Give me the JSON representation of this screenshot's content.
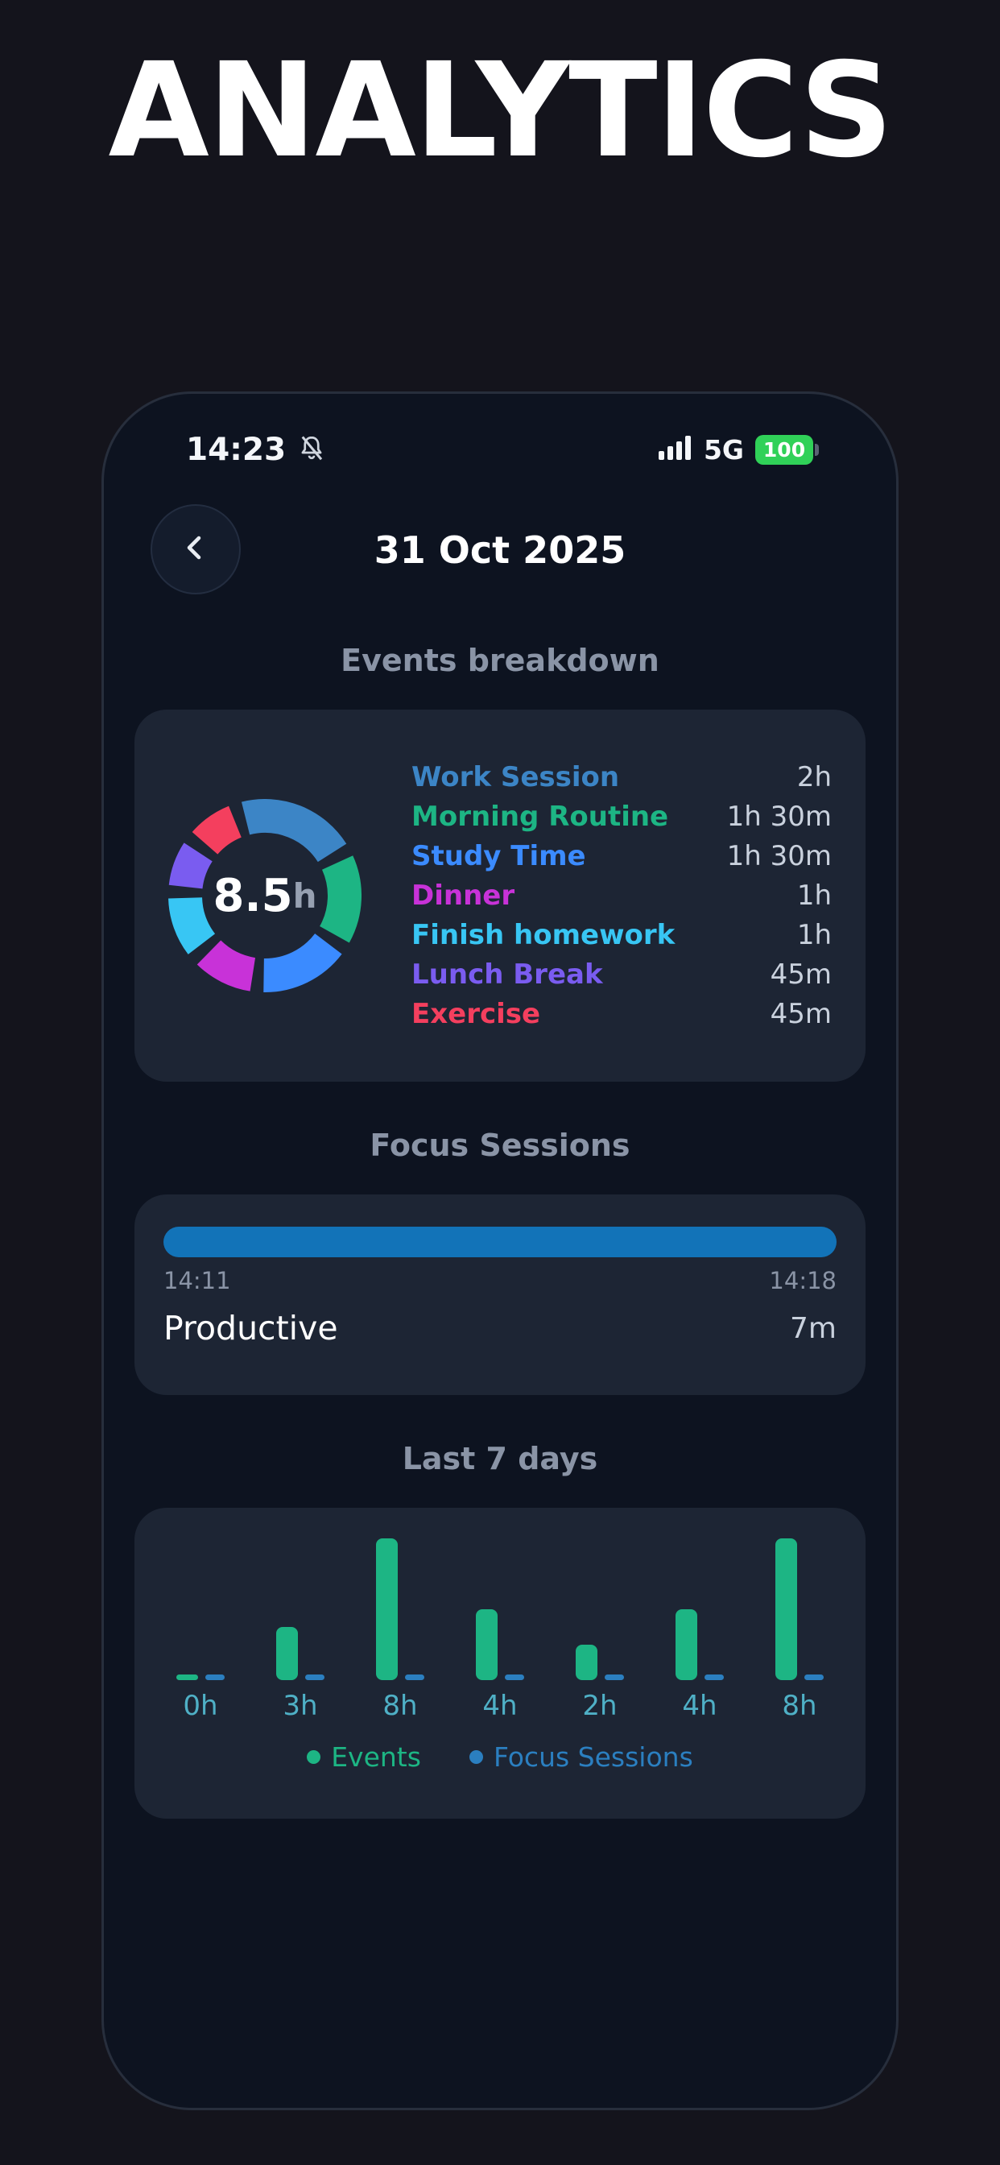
{
  "app": {
    "title": "ANALYTICS"
  },
  "status_bar": {
    "time": "14:23",
    "network": "5G",
    "battery_percent": "100"
  },
  "header": {
    "title": "31 Oct 2025"
  },
  "events_section": {
    "heading": "Events breakdown",
    "total_value": "8.5",
    "total_unit": "h"
  },
  "focus_section": {
    "heading": "Focus Sessions",
    "session": {
      "start_time": "14:11",
      "end_time": "14:18",
      "label": "Productive",
      "duration": "7m"
    }
  },
  "week_section": {
    "heading": "Last 7 days"
  },
  "colors": {
    "page_background": "#14141c",
    "phone_background": "#0d1320",
    "card_background": "#1d2534",
    "heading_text": "#8a94a6",
    "value_text": "#c9d1dd",
    "focus_bar": "#1273b8",
    "battery": "#30d158",
    "tick_label": "#4fb0c6"
  },
  "chart_data": [
    {
      "type": "pie",
      "title": "Events breakdown",
      "center_label": "8.5h",
      "total_hours": 8.5,
      "labels": [
        "Work Session",
        "Morning Routine",
        "Study Time",
        "Dinner",
        "Finish homework",
        "Lunch Break",
        "Exercise"
      ],
      "values_hours": [
        2,
        1.5,
        1.5,
        1,
        1,
        0.75,
        0.75
      ],
      "value_labels": [
        "2h",
        "1h 30m",
        "1h 30m",
        "1h",
        "1h",
        "45m",
        "45m"
      ],
      "colors": [
        "#3c85c6",
        "#1db584",
        "#3b8bff",
        "#c832d8",
        "#38c6f4",
        "#7a5cf0",
        "#f43f5e"
      ]
    },
    {
      "type": "bar",
      "title": "Last 7 days",
      "categories": [
        "0h",
        "3h",
        "8h",
        "4h",
        "2h",
        "4h",
        "8h"
      ],
      "series": [
        {
          "name": "Events",
          "values_hours": [
            0,
            3,
            8,
            4,
            2,
            4,
            8
          ],
          "color": "#1db584"
        },
        {
          "name": "Focus Sessions",
          "values_hours": [
            0,
            0,
            0,
            0,
            0,
            0,
            0
          ],
          "color": "#2b7fc0"
        }
      ],
      "ylim": [
        0,
        8
      ],
      "legend_position": "bottom",
      "grid": false
    }
  ]
}
